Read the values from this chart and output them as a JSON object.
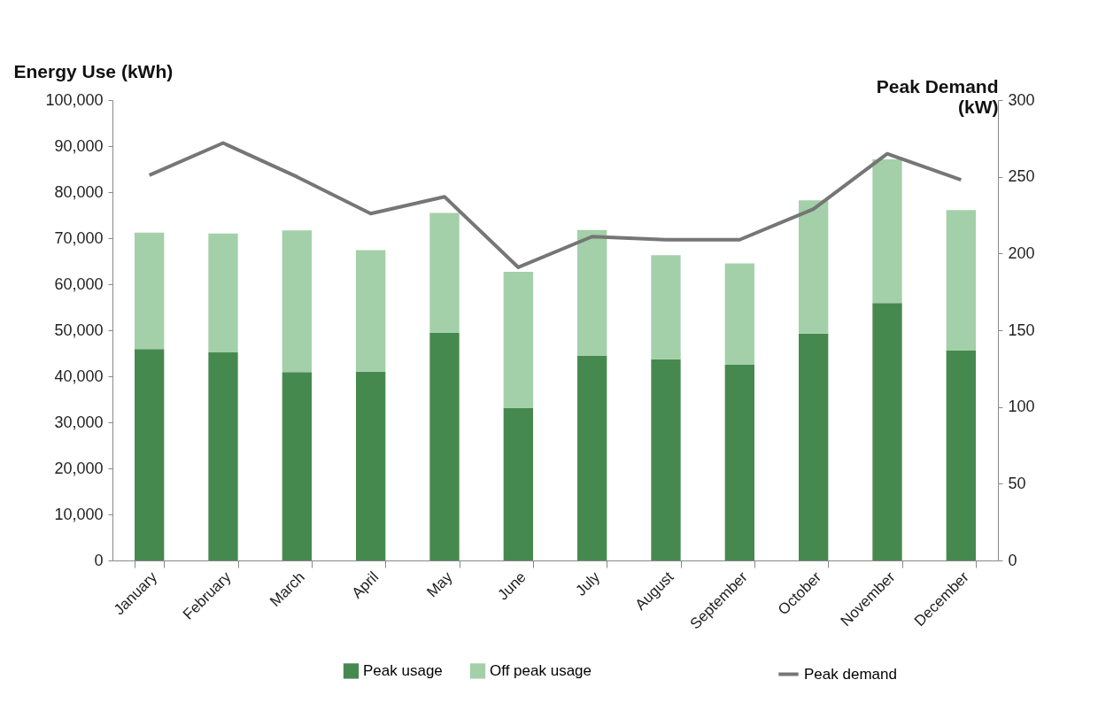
{
  "chart_data": {
    "type": "bar",
    "stacked": true,
    "ylabel": "Energy Use (kWh)",
    "y2label": "Peak Demand (kW)",
    "categories": [
      "January",
      "February",
      "March",
      "April",
      "May",
      "June",
      "July",
      "August",
      "September",
      "October",
      "November",
      "December"
    ],
    "series": [
      {
        "name": "Peak usage",
        "color": "#46894f",
        "values": [
          45900,
          45200,
          40900,
          41000,
          49400,
          33100,
          44400,
          43700,
          42500,
          49300,
          55900,
          45600
        ]
      },
      {
        "name": "Off peak usage",
        "color": "#a3d0a8",
        "values": [
          25300,
          25800,
          30800,
          26400,
          26100,
          29600,
          27400,
          22600,
          22000,
          28900,
          31200,
          30500
        ]
      },
      {
        "name": "Peak demand",
        "color": "#767676",
        "type": "line",
        "axis": "y2",
        "values": [
          251,
          272,
          250,
          226,
          237,
          191,
          211,
          209,
          209,
          229,
          265,
          248
        ]
      }
    ],
    "ylim": [
      0,
      100000
    ],
    "yticks": [
      0,
      {
        "value": 10000,
        "label": "10,000"
      },
      {
        "value": 20000,
        "label": "20,000"
      },
      {
        "value": 30000,
        "label": "30,000"
      },
      {
        "value": 40000,
        "label": "40,000"
      },
      {
        "value": 50000,
        "label": "50,000"
      },
      {
        "value": 60000,
        "label": "60,000"
      },
      {
        "value": 70000,
        "label": "70,000"
      },
      {
        "value": 80000,
        "label": "80,000"
      },
      {
        "value": 90000,
        "label": "90,000"
      },
      {
        "value": 100000,
        "label": "100,000"
      }
    ],
    "y2lim": [
      0,
      300
    ],
    "y2ticks": [
      0,
      50,
      100,
      150,
      200,
      250,
      300
    ],
    "grid": false,
    "legend": "bottom",
    "marker": "none",
    "line_style": "solid"
  }
}
